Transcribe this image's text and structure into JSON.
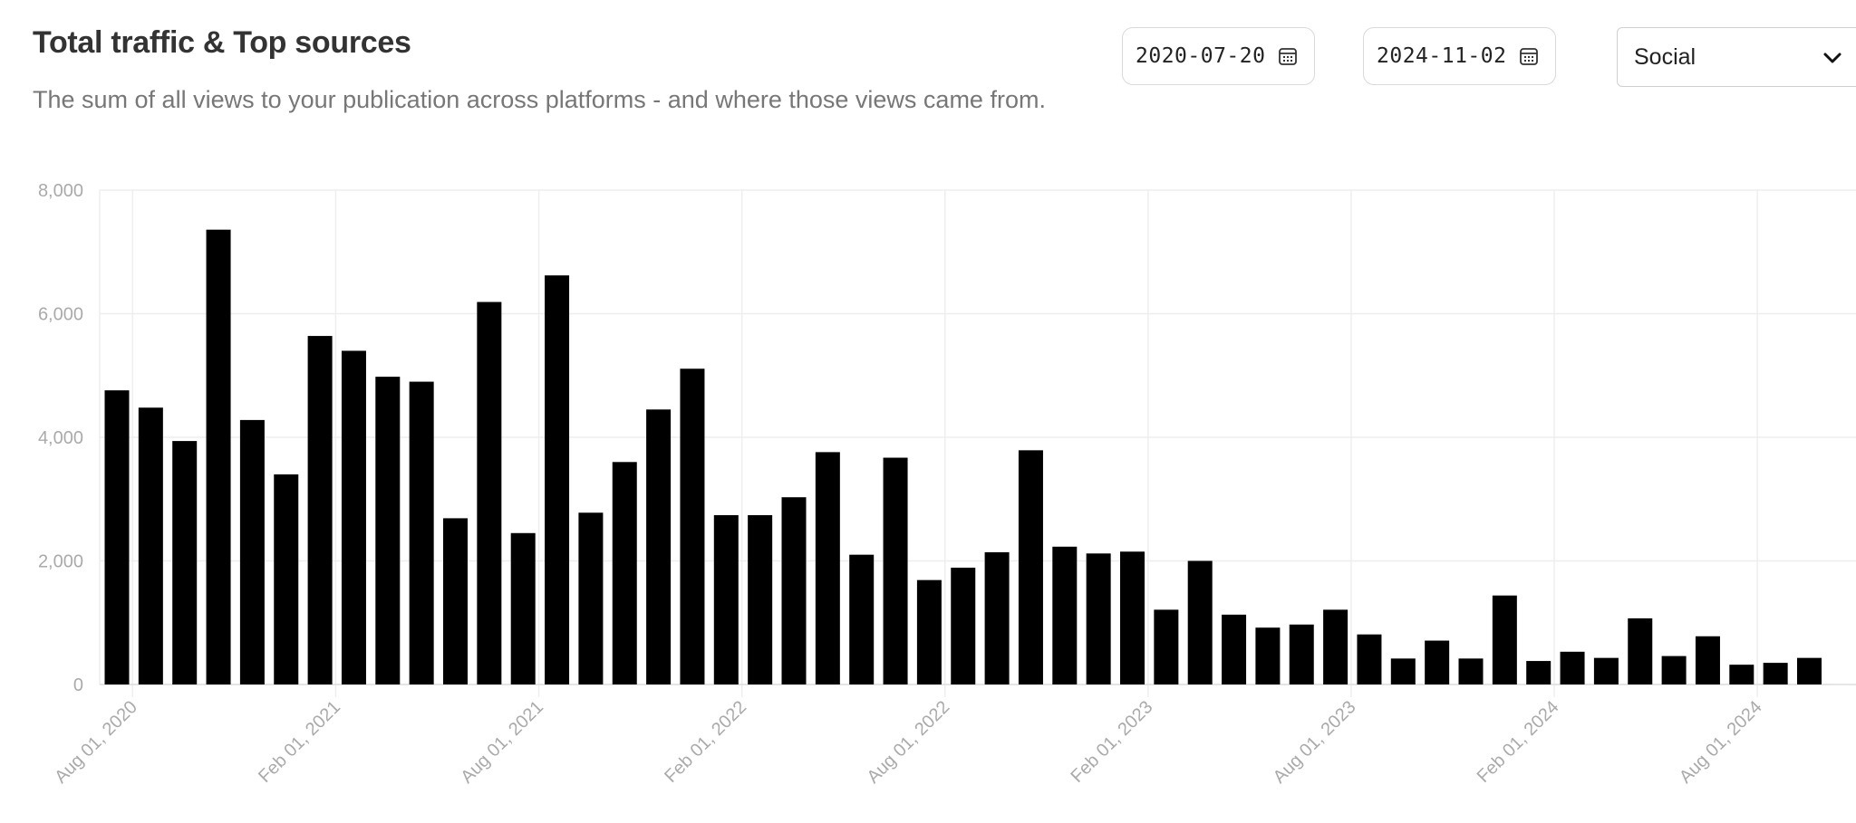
{
  "header": {
    "title": "Total traffic & Top sources",
    "subtitle": "The sum of all views to your publication across platforms - and where those views came from."
  },
  "filters": {
    "start_date": "2020-07-20",
    "end_date": "2024-11-02",
    "source": "Social"
  },
  "icons": {
    "calendar": "calendar-icon",
    "dropdown": "chevron-down-icon"
  },
  "colors": {
    "bar": "#000000",
    "grid": "#eeeeee",
    "tick": "#aaaaaa"
  },
  "chart_data": {
    "type": "bar",
    "title": "",
    "xlabel": "",
    "ylabel": "",
    "ylim": [
      0,
      8000
    ],
    "yticks": [
      "0",
      "2,000",
      "4,000",
      "6,000",
      "8,000"
    ],
    "xtick_labels": [
      "Aug 01, 2020",
      "Feb 01, 2021",
      "Aug 01, 2021",
      "Feb 01, 2022",
      "Aug 01, 2022",
      "Feb 01, 2023",
      "Aug 01, 2023",
      "Feb 01, 2024",
      "Aug 01, 2024"
    ],
    "grid": true,
    "categories": [
      "Jul 2020",
      "Aug 2020",
      "Sep 2020",
      "Oct 2020",
      "Nov 2020",
      "Dec 2020",
      "Jan 2021",
      "Feb 2021",
      "Mar 2021",
      "Apr 2021",
      "May 2021",
      "Jun 2021",
      "Jul 2021",
      "Aug 2021",
      "Sep 2021",
      "Oct 2021",
      "Nov 2021",
      "Dec 2021",
      "Jan 2022",
      "Feb 2022",
      "Mar 2022",
      "Apr 2022",
      "May 2022",
      "Jun 2022",
      "Jul 2022",
      "Aug 2022",
      "Sep 2022",
      "Oct 2022",
      "Nov 2022",
      "Dec 2022",
      "Jan 2023",
      "Feb 2023",
      "Mar 2023",
      "Apr 2023",
      "May 2023",
      "Jun 2023",
      "Jul 2023",
      "Aug 2023",
      "Sep 2023",
      "Oct 2023",
      "Nov 2023",
      "Dec 2023",
      "Jan 2024",
      "Feb 2024",
      "Mar 2024",
      "Apr 2024",
      "May 2024",
      "Jun 2024",
      "Jul 2024",
      "Aug 2024",
      "Sep 2024",
      "Oct 2024",
      "Nov 2024"
    ],
    "values": [
      4760,
      4480,
      3940,
      7360,
      4280,
      3400,
      5640,
      5400,
      4980,
      4900,
      2690,
      6190,
      2450,
      6620,
      2780,
      3600,
      4450,
      5110,
      2740,
      2740,
      3030,
      3760,
      2100,
      3670,
      1690,
      1890,
      2140,
      3790,
      2230,
      2120,
      2150,
      1210,
      2000,
      1130,
      920,
      970,
      1210,
      810,
      420,
      710,
      420,
      1440,
      380,
      530,
      430,
      1070,
      460,
      780,
      320,
      350,
      430,
      10,
      10
    ]
  }
}
